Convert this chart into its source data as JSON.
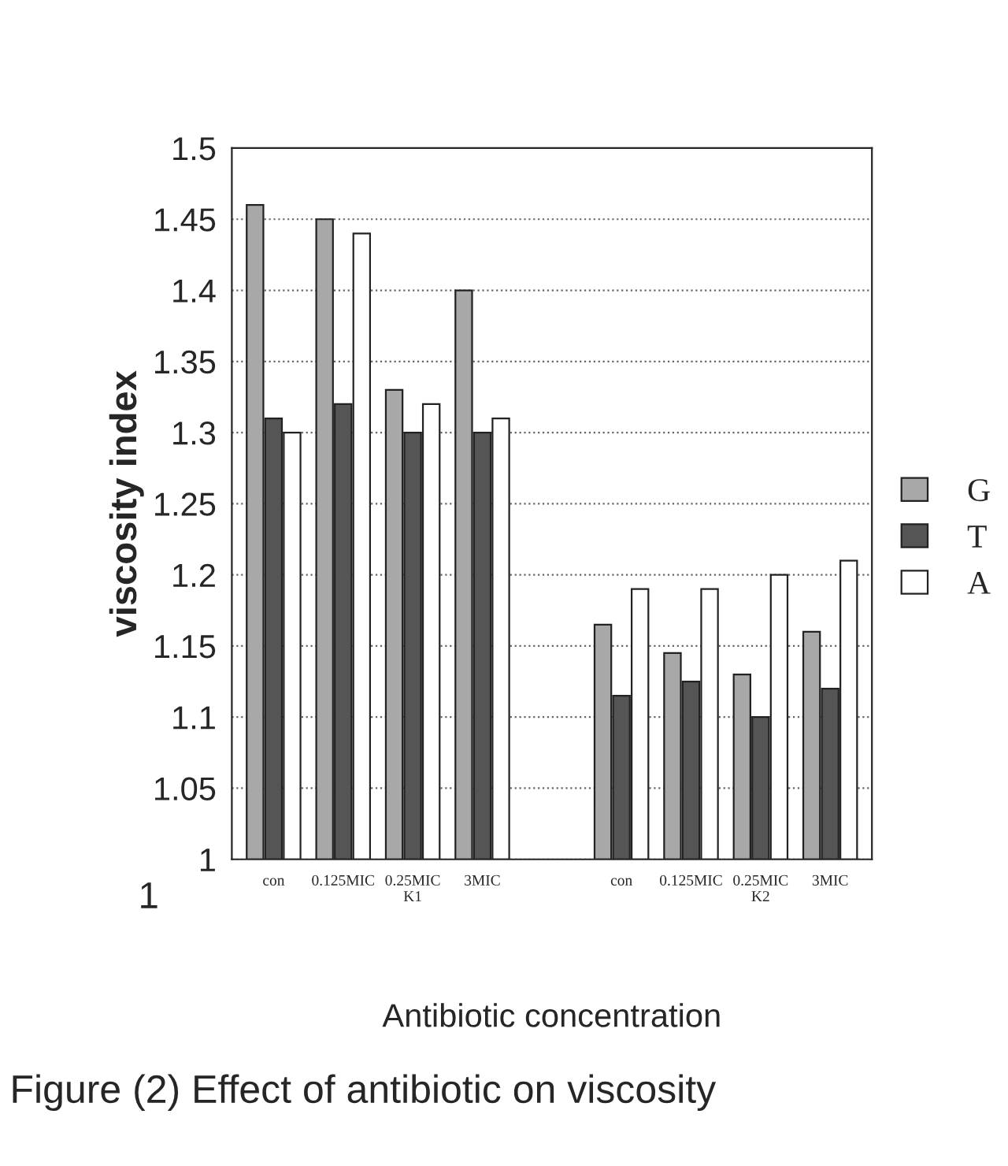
{
  "chart_data": {
    "type": "bar",
    "title": "Figure (2) Effect of antibiotic on viscosity",
    "xlabel": "Antibiotic concentration",
    "ylabel": "viscosity index",
    "categories": [
      "con",
      "0.125MIC",
      "0.25MIC\nK1",
      "3MIC",
      null,
      "con",
      "0.125MIC",
      "0.25MIC\nK2",
      "3MIC"
    ],
    "series": [
      {
        "name": "G",
        "color": "#a8a8a8",
        "values": [
          1.46,
          1.45,
          1.33,
          1.4,
          null,
          1.165,
          1.145,
          1.13,
          1.16
        ]
      },
      {
        "name": "T",
        "color": "#555555",
        "values": [
          1.31,
          1.32,
          1.3,
          1.3,
          null,
          1.115,
          1.125,
          1.1,
          1.12
        ]
      },
      {
        "name": "A",
        "color": "#ffffff",
        "values": [
          1.3,
          1.44,
          1.32,
          1.31,
          null,
          1.19,
          1.19,
          1.2,
          1.21
        ]
      }
    ],
    "ylim": [
      1,
      1.5
    ],
    "yticks": [
      1,
      1.05,
      1.1,
      1.15,
      1.2,
      1.25,
      1.3,
      1.35,
      1.4,
      1.45,
      1.5
    ],
    "annotations": [
      "1"
    ],
    "grid": "y",
    "legend": "right"
  }
}
